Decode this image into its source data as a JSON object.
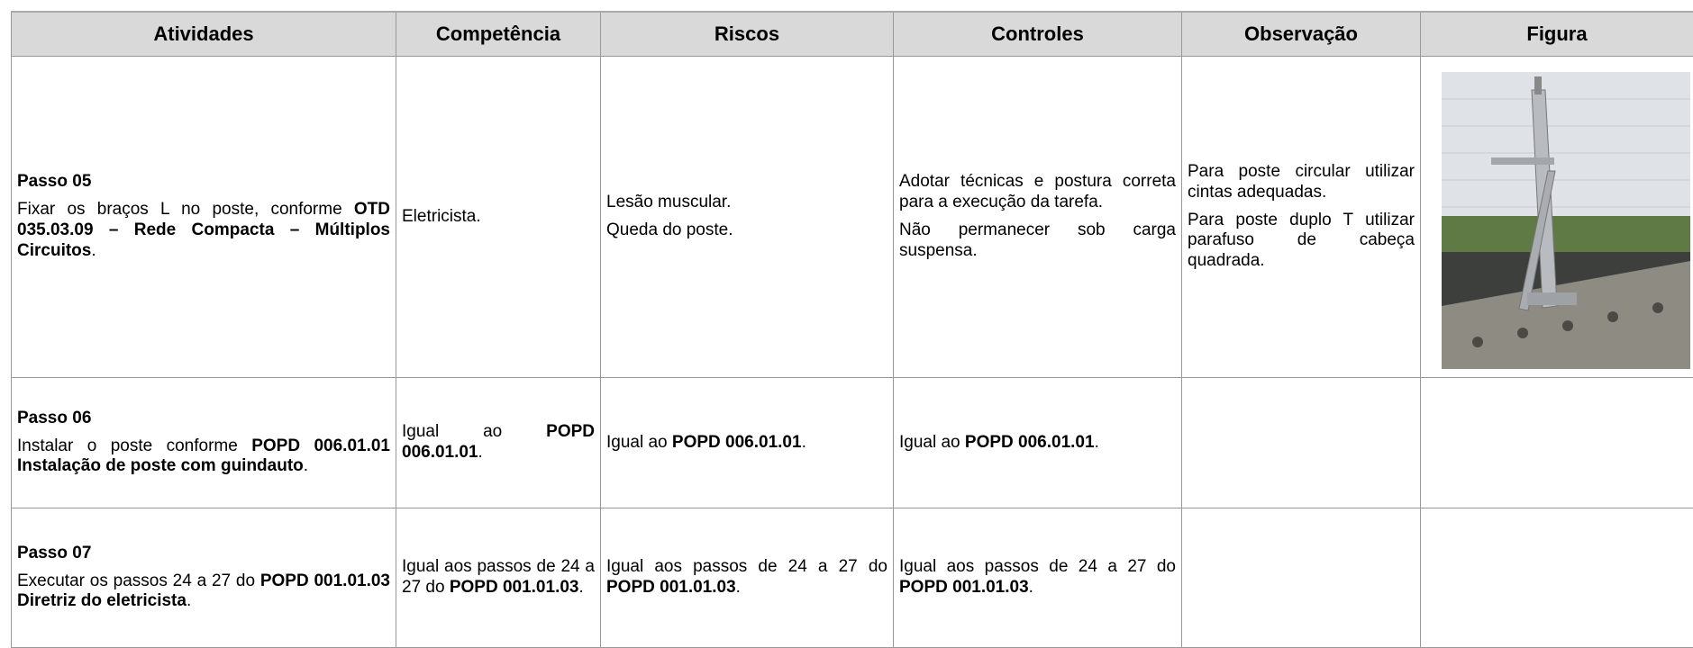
{
  "table": {
    "header": [
      "Atividades",
      "Competência",
      "Riscos",
      "Controles",
      "Observação",
      "Figura"
    ],
    "rows": [
      [
        [
          [
            {
              "text": "Passo 05",
              "bold": true
            }
          ],
          [
            {
              "text": "Fixar os braços L no poste, conforme "
            },
            {
              "text": "OTD 035.03.09 – Rede Compacta – Múltiplos Circuitos",
              "bold": true
            },
            {
              "text": "."
            }
          ]
        ],
        [
          [
            {
              "text": "Eletricista."
            }
          ]
        ],
        [
          [
            {
              "text": "Lesão muscular."
            }
          ],
          [
            {
              "text": "Queda do poste."
            }
          ]
        ],
        [
          [
            {
              "text": "Adotar técnicas e postura correta para a execução da tarefa."
            }
          ],
          [
            {
              "text": "Não permanecer sob carga suspensa."
            }
          ]
        ],
        [
          [
            {
              "text": "Para poste circular utilizar cintas adequadas."
            }
          ],
          [
            {
              "text": "Para poste duplo T utilizar parafuso de cabeça quadrada."
            }
          ]
        ],
        []
      ],
      [
        [
          [
            {
              "text": "Passo 06",
              "bold": true
            }
          ],
          [
            {
              "text": "Instalar o poste conforme "
            },
            {
              "text": "POPD 006.01.01 Instalação de poste com guindauto",
              "bold": true
            },
            {
              "text": "."
            }
          ]
        ],
        [
          [
            {
              "text": "Igual ao "
            },
            {
              "text": "POPD 006.01.01",
              "bold": true
            },
            {
              "text": "."
            }
          ]
        ],
        [
          [
            {
              "text": "Igual ao "
            },
            {
              "text": "POPD 006.01.01",
              "bold": true
            },
            {
              "text": "."
            }
          ]
        ],
        [
          [
            {
              "text": "Igual ao "
            },
            {
              "text": "POPD 006.01.01",
              "bold": true
            },
            {
              "text": "."
            }
          ]
        ],
        [],
        []
      ],
      [
        [
          [
            {
              "text": "Passo 07",
              "bold": true
            }
          ],
          [
            {
              "text": "Executar os passos 24 a 27 do "
            },
            {
              "text": "POPD 001.01.03 Diretriz do eletricista",
              "bold": true
            },
            {
              "text": "."
            }
          ]
        ],
        [
          [
            {
              "text": "Igual aos passos de 24 a 27 do "
            },
            {
              "text": "POPD 001.01.03",
              "bold": true
            },
            {
              "text": "."
            }
          ]
        ],
        [
          [
            {
              "text": "Igual aos passos de 24 a 27 do "
            },
            {
              "text": "POPD 001.01.03",
              "bold": true
            },
            {
              "text": "."
            }
          ]
        ],
        [
          [
            {
              "text": "Igual aos passos de 24 a 27 do "
            },
            {
              "text": "POPD 001.01.03",
              "bold": true
            },
            {
              "text": "."
            }
          ]
        ],
        [],
        []
      ]
    ]
  }
}
